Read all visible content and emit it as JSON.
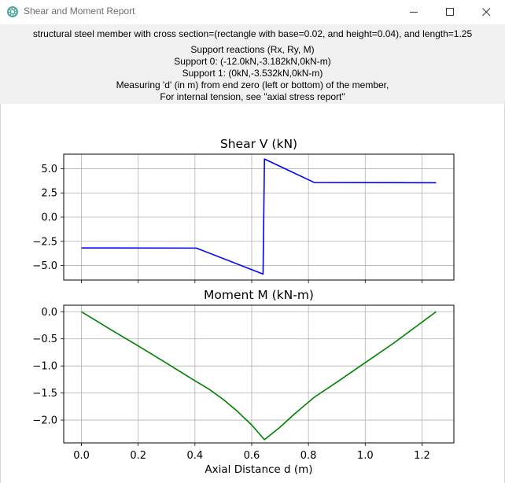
{
  "window": {
    "title": "Shear and Moment Report",
    "app_icon": "gear-icon",
    "controls": [
      "minimize-icon",
      "maximize-icon",
      "close-icon"
    ]
  },
  "header": {
    "line0": "structural steel member with cross section=(rectangle with base=0.02, and height=0.04), and length=1.25",
    "line1": "Support reactions (Rx, Ry, M)",
    "line2": "Support 0: (-12.0kN,-3.182kN,0kN-m)",
    "line3": "Support 1: (0kN,-3.532kN,0kN-m)",
    "line4": "Measuring 'd' (in m) from end zero (left or bottom) of the member,",
    "line5": "For internal tension, see \"axial stress report\""
  },
  "colors": {
    "shear_line": "#0000ff",
    "moment_line": "#008000",
    "grid": "#b0b0b0",
    "header_bg": "#f0f0f0"
  },
  "chart_data": [
    {
      "type": "line",
      "title": "Shear V (kN)",
      "xlabel": "",
      "ylabel": "",
      "xlim": [
        -0.0625,
        1.3125
      ],
      "ylim": [
        -6.5,
        6.5
      ],
      "xticks": [
        0.0,
        0.2,
        0.4,
        0.6,
        0.8,
        1.0,
        1.2
      ],
      "yticks": [
        5.0,
        2.5,
        0.0,
        -2.5,
        -5.0
      ],
      "ytick_labels": [
        "5.0",
        "2.5",
        "0.0",
        "−2.5",
        "−5.0"
      ],
      "show_xtick_labels": false,
      "grid": true,
      "series": [
        {
          "color": "#0000ff",
          "x": [
            0.0,
            0.405,
            0.64,
            0.645,
            0.82,
            1.25
          ],
          "y": [
            -3.18,
            -3.2,
            -5.88,
            6.0,
            3.58,
            3.55
          ]
        }
      ]
    },
    {
      "type": "line",
      "title": "Moment M (kN-m)",
      "xlabel": "Axial Distance d (m)",
      "ylabel": "",
      "xlim": [
        -0.0625,
        1.3125
      ],
      "ylim": [
        -2.42,
        0.12
      ],
      "xticks": [
        0.0,
        0.2,
        0.4,
        0.6,
        0.8,
        1.0,
        1.2
      ],
      "xtick_labels": [
        "0.0",
        "0.2",
        "0.4",
        "0.6",
        "0.8",
        "1.0",
        "1.2"
      ],
      "yticks": [
        0.0,
        -0.5,
        -1.0,
        -1.5,
        -2.0
      ],
      "ytick_labels": [
        "0.0",
        "−0.5",
        "−1.0",
        "−1.5",
        "−2.0"
      ],
      "show_xtick_labels": true,
      "grid": true,
      "series": [
        {
          "color": "#008000",
          "x": [
            0.0,
            0.1,
            0.2,
            0.3,
            0.405,
            0.45,
            0.5,
            0.55,
            0.6,
            0.645,
            0.7,
            0.75,
            0.82,
            0.9,
            1.0,
            1.1,
            1.25
          ],
          "y": [
            0.0,
            -0.32,
            -0.63,
            -0.95,
            -1.29,
            -1.43,
            -1.62,
            -1.84,
            -2.09,
            -2.36,
            -2.13,
            -1.89,
            -1.58,
            -1.3,
            -0.94,
            -0.58,
            0.0
          ]
        }
      ]
    }
  ]
}
